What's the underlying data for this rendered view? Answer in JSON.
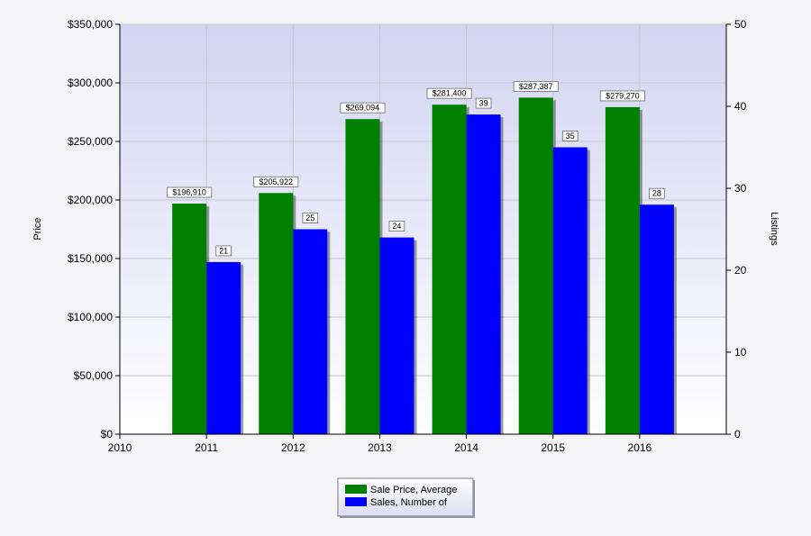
{
  "chart_data": {
    "type": "bar",
    "title": "",
    "xlabel": "",
    "ylabel": "Price",
    "y2label": "Listings",
    "x_ticks": [
      "2010",
      "2011",
      "2012",
      "2013",
      "2014",
      "2015",
      "2016"
    ],
    "categories": [
      "2011",
      "2012",
      "2013",
      "2014",
      "2015",
      "2016"
    ],
    "ylim": [
      0,
      350000
    ],
    "y_ticks": [
      0,
      50000,
      100000,
      150000,
      200000,
      250000,
      300000,
      350000
    ],
    "y_tick_labels": [
      "$0",
      "$50,000",
      "$100,000",
      "$150,000",
      "$200,000",
      "$250,000",
      "$300,000",
      "$350,000"
    ],
    "y2lim": [
      0,
      50
    ],
    "y2_ticks": [
      0,
      10,
      20,
      30,
      40,
      50
    ],
    "y2_tick_labels": [
      "0",
      "10",
      "20",
      "30",
      "40",
      "50"
    ],
    "grid": true,
    "legend_position": "bottom",
    "series": [
      {
        "name": "Sale Price, Average",
        "axis": "left",
        "color": "#008000",
        "values": [
          196910,
          205922,
          269094,
          281400,
          287387,
          279270
        ],
        "labels": [
          "$196,910",
          "$205,922",
          "$269,094",
          "$281,400",
          "$287,387",
          "$279,270"
        ]
      },
      {
        "name": "Sales, Number of",
        "axis": "right",
        "color": "#0000ff",
        "values": [
          21,
          25,
          24,
          39,
          35,
          28
        ],
        "labels": [
          "21",
          "25",
          "24",
          "39",
          "35",
          "28"
        ]
      }
    ]
  }
}
